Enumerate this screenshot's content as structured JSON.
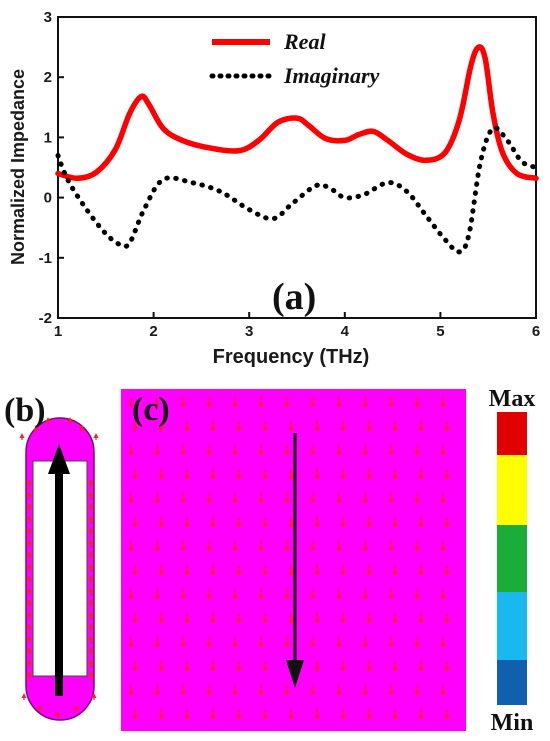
{
  "chart_data": {
    "type": "line",
    "xlabel": "Frequency (THz)",
    "ylabel": "Normalized Impedance",
    "xlim": [
      1,
      6
    ],
    "ylim": [
      -2,
      3
    ],
    "xticks": [
      1,
      2,
      3,
      4,
      5,
      6
    ],
    "yticks": [
      -2,
      -1,
      0,
      1,
      2,
      3
    ],
    "grid": false,
    "legend": "top-center",
    "series": [
      {
        "name": "Real",
        "style": "solid",
        "color": "#ff0000",
        "x": [
          1.0,
          1.2,
          1.4,
          1.6,
          1.75,
          1.87,
          1.95,
          2.1,
          2.3,
          2.6,
          2.9,
          3.1,
          3.3,
          3.5,
          3.62,
          3.8,
          4.0,
          4.15,
          4.3,
          4.45,
          4.65,
          4.85,
          5.05,
          5.2,
          5.32,
          5.4,
          5.47,
          5.55,
          5.65,
          5.8,
          6.0
        ],
        "y": [
          0.4,
          0.32,
          0.42,
          0.8,
          1.4,
          1.68,
          1.55,
          1.15,
          0.95,
          0.82,
          0.78,
          0.95,
          1.25,
          1.32,
          1.2,
          0.98,
          0.95,
          1.05,
          1.1,
          0.95,
          0.72,
          0.62,
          0.75,
          1.3,
          2.2,
          2.5,
          2.3,
          1.4,
          0.75,
          0.4,
          0.32
        ]
      },
      {
        "name": "Imaginary",
        "style": "dotted",
        "color": "#000000",
        "x": [
          1.0,
          1.1,
          1.3,
          1.5,
          1.65,
          1.75,
          1.9,
          2.1,
          2.4,
          2.7,
          3.0,
          3.25,
          3.45,
          3.7,
          3.85,
          4.0,
          4.2,
          4.45,
          4.65,
          4.85,
          5.05,
          5.2,
          5.3,
          5.42,
          5.55,
          5.7,
          5.85,
          6.0
        ],
        "y": [
          0.7,
          0.3,
          -0.2,
          -0.6,
          -0.78,
          -0.75,
          -0.2,
          0.3,
          0.25,
          0.1,
          -0.2,
          -0.35,
          -0.1,
          0.2,
          0.15,
          0.0,
          0.05,
          0.25,
          0.1,
          -0.3,
          -0.7,
          -0.9,
          -0.6,
          0.6,
          1.15,
          0.95,
          0.6,
          0.5
        ]
      }
    ]
  },
  "labels": {
    "panel_a": "(a)",
    "panel_b": "(b)",
    "panel_c": "(c)",
    "colorbar_max": "Max",
    "colorbar_min": "Min"
  },
  "colors": {
    "field_magenta": "#ff00ff",
    "arrow_red": "#ff2020",
    "main_arrow": "#000000",
    "colorbar": [
      "#e00000",
      "#ffff00",
      "#1aad3a",
      "#19b8f0",
      "#1060b0"
    ]
  }
}
